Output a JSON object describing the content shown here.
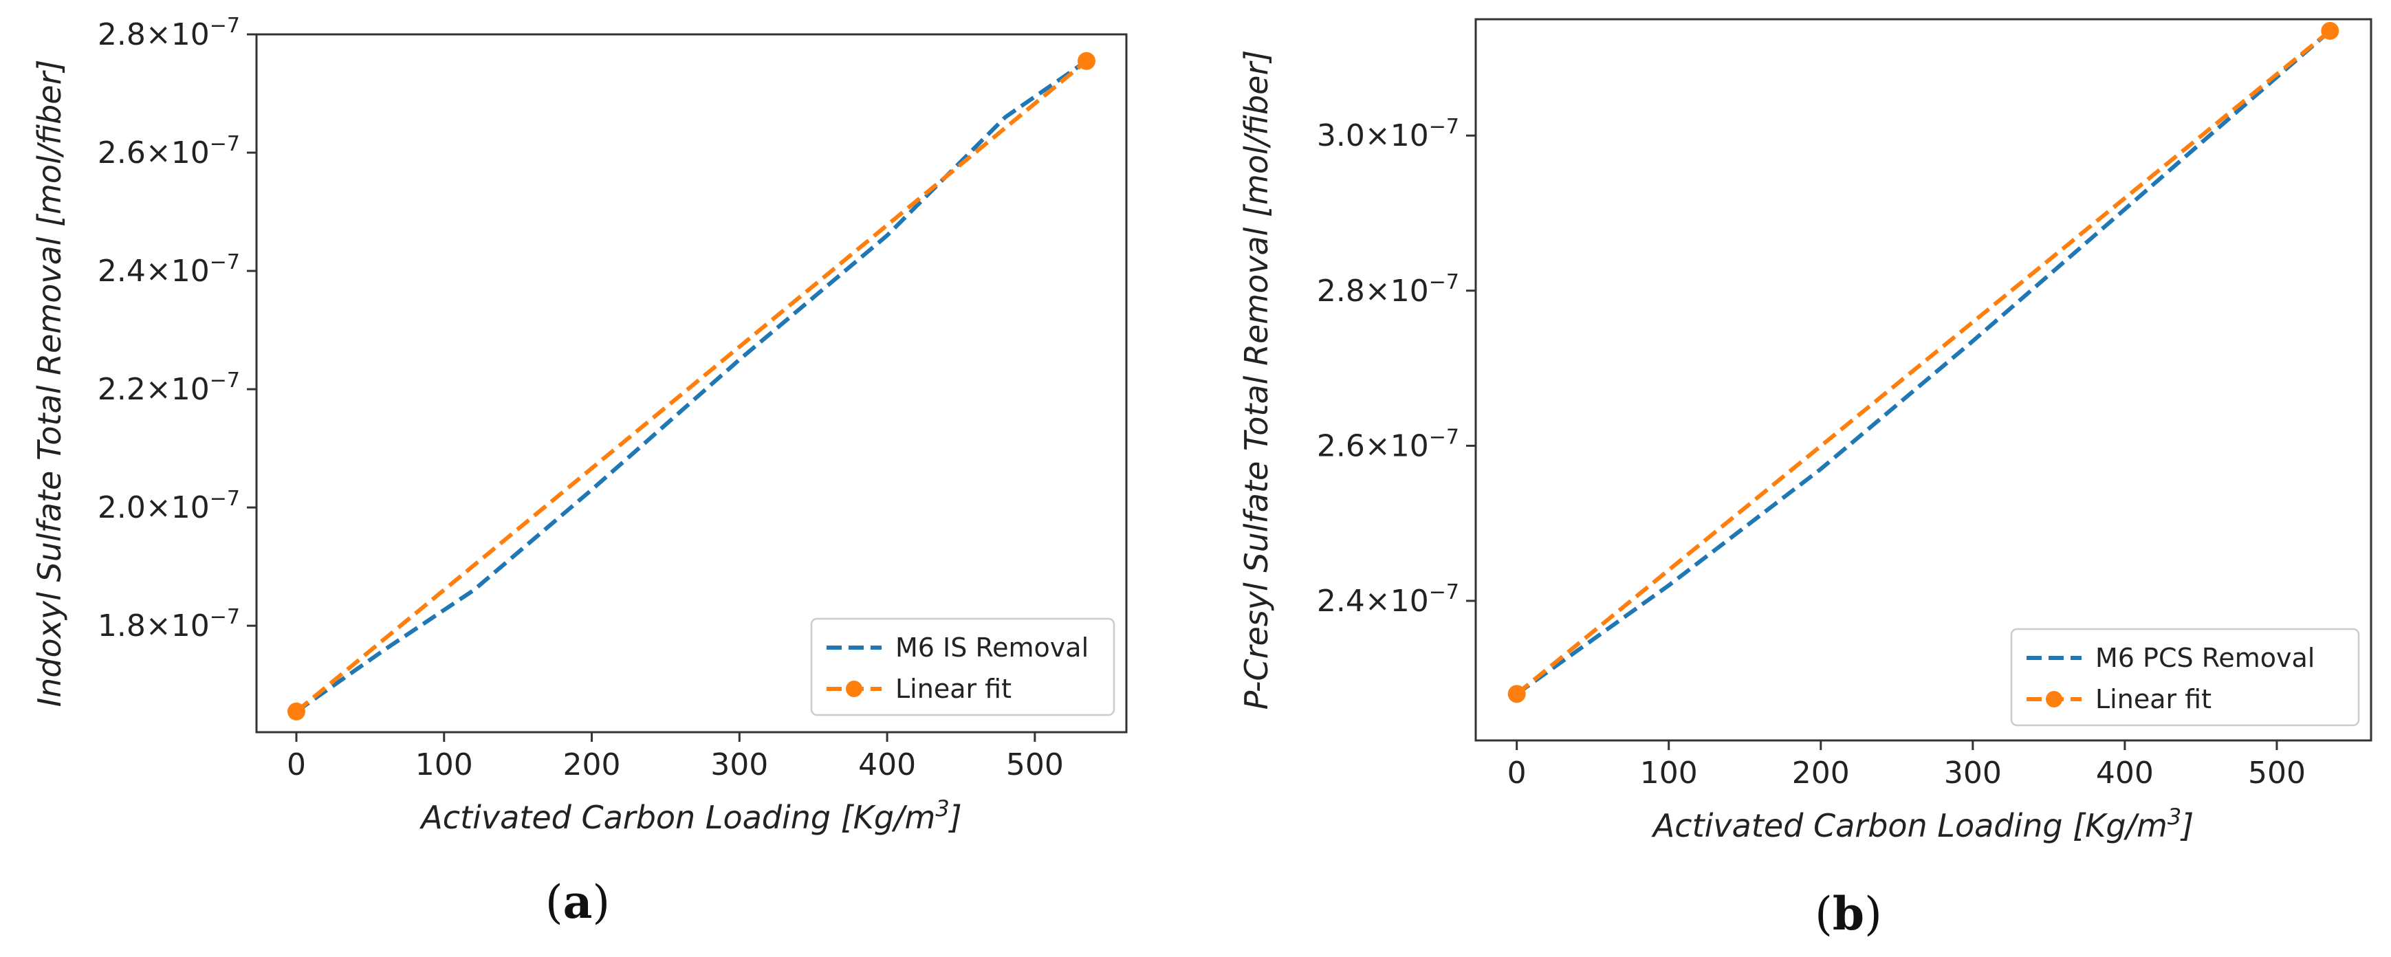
{
  "colors": {
    "removal": "#1f77b4",
    "fit": "#ff7f0e",
    "axes": "#333333"
  },
  "chart_data": [
    {
      "panel": "(a)",
      "panel_letter": "a",
      "type": "line",
      "xlabel": "Activated Carbon Loading [Kg/m3]",
      "ylabel": "Indoxyl Sulfate Total Removal [mol/fiber]",
      "xlim": [
        -27,
        562
      ],
      "ylim": [
        1.62e-07,
        2.8e-07
      ],
      "xticks": [
        0,
        100,
        200,
        300,
        400,
        500
      ],
      "yticks": [
        {
          "value": 1.8e-07,
          "mantissa": "1.8"
        },
        {
          "value": 2e-07,
          "mantissa": "2.0"
        },
        {
          "value": 2.2e-07,
          "mantissa": "2.2"
        },
        {
          "value": 2.4e-07,
          "mantissa": "2.4"
        },
        {
          "value": 2.6e-07,
          "mantissa": "2.6"
        },
        {
          "value": 2.8e-07,
          "mantissa": "2.8"
        }
      ],
      "series": [
        {
          "name": "M6 IS Removal",
          "style": "dashed",
          "x": [
            0,
            60,
            120,
            200,
            300,
            400,
            480,
            535
          ],
          "y": [
            1.655e-07,
            1.76e-07,
            1.86e-07,
            2.03e-07,
            2.25e-07,
            2.46e-07,
            2.66e-07,
            2.755e-07
          ]
        },
        {
          "name": "Linear fit",
          "style": "dashed-markers",
          "x": [
            0,
            535
          ],
          "y": [
            1.655e-07,
            2.755e-07
          ]
        }
      ],
      "legend_position": "lower-right"
    },
    {
      "panel": "(b)",
      "panel_letter": "b",
      "type": "line",
      "xlabel": "Activated Carbon Loading [Kg/m3]",
      "ylabel": "P-Cresyl Sulfate Total Removal [mol/fiber]",
      "xlim": [
        -27,
        562
      ],
      "ylim": [
        2.22e-07,
        3.15e-07
      ],
      "xticks": [
        0,
        100,
        200,
        300,
        400,
        500
      ],
      "yticks": [
        {
          "value": 2.4e-07,
          "mantissa": "2.4"
        },
        {
          "value": 2.6e-07,
          "mantissa": "2.6"
        },
        {
          "value": 2.8e-07,
          "mantissa": "2.8"
        },
        {
          "value": 3e-07,
          "mantissa": "3.0"
        }
      ],
      "series": [
        {
          "name": "M6 PCS Removal",
          "style": "dashed",
          "x": [
            0,
            100,
            200,
            300,
            400,
            535
          ],
          "y": [
            2.28e-07,
            2.42e-07,
            2.57e-07,
            2.735e-07,
            2.905e-07,
            3.135e-07
          ]
        },
        {
          "name": "Linear fit",
          "style": "dashed-markers",
          "x": [
            0,
            535
          ],
          "y": [
            2.28e-07,
            3.135e-07
          ]
        }
      ],
      "legend_position": "lower-right"
    }
  ]
}
